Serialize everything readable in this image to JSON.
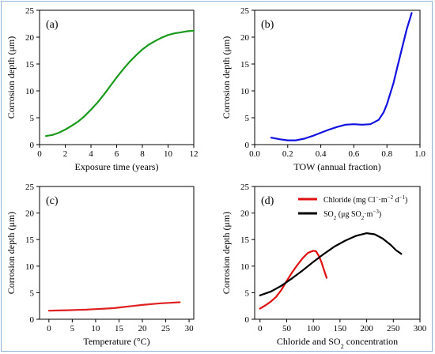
{
  "chart_data": [
    {
      "type": "line",
      "panel_label": "(a)",
      "xlabel": "Exposure time (years)",
      "ylabel": "Corrosion depth (μm)",
      "xlim": [
        0,
        12
      ],
      "ylim": [
        0,
        25
      ],
      "xticks": [
        "0",
        "2",
        "4",
        "6",
        "8",
        "10",
        "12"
      ],
      "yticks": [
        "0",
        "5",
        "10",
        "15",
        "20",
        "25"
      ],
      "series": [
        {
          "color": "#1a9a1a",
          "x": [
            0.5,
            1,
            1.5,
            2,
            2.5,
            3,
            3.5,
            4,
            4.5,
            5,
            5.5,
            6,
            6.5,
            7,
            7.5,
            8,
            8.5,
            9,
            9.5,
            10,
            10.5,
            11,
            11.5,
            12
          ],
          "y": [
            1.6,
            1.8,
            2.2,
            2.8,
            3.5,
            4.3,
            5.3,
            6.5,
            7.8,
            9.3,
            10.9,
            12.5,
            14.0,
            15.4,
            16.6,
            17.7,
            18.6,
            19.3,
            19.9,
            20.4,
            20.7,
            20.9,
            21.1,
            21.2
          ]
        }
      ]
    },
    {
      "type": "line",
      "panel_label": "(b)",
      "xlabel": "TOW (annual fraction)",
      "ylabel": "Corrosion depth (μm)",
      "xlim": [
        0,
        1.0
      ],
      "ylim": [
        0,
        25
      ],
      "xticks": [
        "0.0",
        "0.2",
        "0.4",
        "0.6",
        "0.8",
        "1.0"
      ],
      "yticks": [
        "0",
        "5",
        "10",
        "15",
        "20",
        "25"
      ],
      "series": [
        {
          "color": "#1010e0",
          "x": [
            0.1,
            0.15,
            0.2,
            0.25,
            0.3,
            0.35,
            0.4,
            0.45,
            0.5,
            0.55,
            0.6,
            0.65,
            0.7,
            0.75,
            0.78,
            0.8,
            0.82,
            0.84,
            0.86,
            0.88,
            0.9,
            0.92,
            0.94,
            0.95
          ],
          "y": [
            1.3,
            1.0,
            0.8,
            0.8,
            1.1,
            1.6,
            2.2,
            2.8,
            3.3,
            3.7,
            3.8,
            3.7,
            3.8,
            4.6,
            6.0,
            7.5,
            9.5,
            11.5,
            14.0,
            16.5,
            19.0,
            21.5,
            23.5,
            24.5
          ]
        }
      ]
    },
    {
      "type": "line",
      "panel_label": "(c)",
      "xlabel": "Temperature (°C)",
      "ylabel": "Corrosion depth (μm)",
      "xlim": [
        -2,
        31
      ],
      "ylim": [
        0,
        25
      ],
      "xticks": [
        "0",
        "5",
        "10",
        "15",
        "20",
        "25",
        "30"
      ],
      "xtick_values": [
        0,
        5,
        10,
        15,
        20,
        25,
        30
      ],
      "yticks": [
        "0",
        "5",
        "10",
        "15",
        "20",
        "25"
      ],
      "series": [
        {
          "color": "#e02020",
          "x": [
            0,
            2,
            4,
            6,
            8,
            10,
            12,
            14,
            16,
            18,
            20,
            22,
            24,
            26,
            28
          ],
          "y": [
            1.6,
            1.65,
            1.7,
            1.75,
            1.8,
            1.9,
            2.0,
            2.1,
            2.3,
            2.5,
            2.7,
            2.85,
            3.0,
            3.1,
            3.2
          ]
        }
      ]
    },
    {
      "type": "line",
      "panel_label": "(d)",
      "xlabel_parts": [
        "Chloride and SO",
        "2",
        " concentration"
      ],
      "ylabel": "Corrosion depth (μm)",
      "xlim": [
        -10,
        300
      ],
      "ylim": [
        0,
        25
      ],
      "xticks": [
        "0",
        "50",
        "100",
        "150",
        "200",
        "250",
        "300"
      ],
      "xtick_values": [
        0,
        50,
        100,
        150,
        200,
        250,
        300
      ],
      "yticks": [
        "0",
        "5",
        "10",
        "15",
        "20",
        "25"
      ],
      "legend_position": "top-left",
      "series": [
        {
          "color": "#e01010",
          "legend_parts": [
            [
              "Chloride (mg Cl",
              ""
            ],
            [
              "−",
              "sup"
            ],
            [
              "·m",
              ""
            ],
            [
              "−2",
              "sup"
            ],
            [
              " d",
              ""
            ],
            [
              "−1",
              "sup"
            ],
            [
              ")",
              ""
            ]
          ],
          "x": [
            0,
            10,
            20,
            30,
            40,
            50,
            60,
            70,
            80,
            90,
            100,
            105,
            110,
            115,
            120,
            125
          ],
          "y": [
            2.0,
            2.6,
            3.3,
            4.2,
            5.5,
            7.2,
            8.8,
            10.2,
            11.5,
            12.5,
            12.9,
            12.8,
            12.0,
            10.8,
            9.3,
            7.8
          ]
        },
        {
          "color": "#000000",
          "legend_parts": [
            [
              "SO",
              ""
            ],
            [
              "2",
              "sub"
            ],
            [
              " (μg SO",
              ""
            ],
            [
              "2",
              "sub"
            ],
            [
              "·m",
              ""
            ],
            [
              "−3",
              "sup"
            ],
            [
              ")",
              ""
            ]
          ],
          "x": [
            0,
            20,
            40,
            60,
            80,
            100,
            120,
            140,
            160,
            180,
            200,
            215,
            230,
            245,
            255,
            265
          ],
          "y": [
            4.5,
            5.2,
            6.3,
            7.7,
            9.2,
            10.8,
            12.3,
            13.7,
            14.8,
            15.7,
            16.2,
            16.0,
            15.2,
            14.0,
            13.0,
            12.3
          ]
        }
      ]
    }
  ]
}
